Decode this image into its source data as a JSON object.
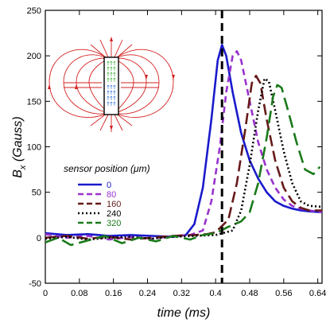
{
  "chart_data": {
    "type": "line",
    "xlabel": "time (ms)",
    "ylabel_main": "B",
    "ylabel_sub": "x",
    "ylabel_units": "(Gauss)",
    "xlim": [
      0,
      0.65
    ],
    "ylim": [
      -50,
      250
    ],
    "xticks": [
      "0",
      "0.08",
      "0.16",
      "0.24",
      "0.32",
      "0.4",
      "0.48",
      "0.56",
      "0.64"
    ],
    "xtick_values": [
      0,
      0.08,
      0.16,
      0.24,
      0.32,
      0.4,
      0.48,
      0.56,
      0.64
    ],
    "yticks": [
      "-50",
      "0",
      "50",
      "100",
      "150",
      "200",
      "250"
    ],
    "ytick_values": [
      -50,
      0,
      50,
      100,
      150,
      200,
      250
    ],
    "vline": {
      "x": 0.415,
      "color": "#000000",
      "style": "dashed"
    },
    "legend": {
      "title": "sensor position (μm)",
      "placement": "left-middle"
    },
    "series": [
      {
        "name": "0",
        "color": "#1a1acc",
        "dash": "solid",
        "points": [
          [
            0,
            5
          ],
          [
            0.05,
            3
          ],
          [
            0.1,
            4
          ],
          [
            0.15,
            2
          ],
          [
            0.2,
            3
          ],
          [
            0.25,
            2
          ],
          [
            0.3,
            1
          ],
          [
            0.33,
            3
          ],
          [
            0.35,
            15
          ],
          [
            0.37,
            55
          ],
          [
            0.39,
            130
          ],
          [
            0.405,
            195
          ],
          [
            0.415,
            212
          ],
          [
            0.425,
            200
          ],
          [
            0.44,
            160
          ],
          [
            0.46,
            115
          ],
          [
            0.48,
            85
          ],
          [
            0.5,
            65
          ],
          [
            0.52,
            50
          ],
          [
            0.54,
            40
          ],
          [
            0.56,
            35
          ],
          [
            0.58,
            32
          ],
          [
            0.6,
            30
          ],
          [
            0.62,
            29
          ],
          [
            0.65,
            28
          ]
        ]
      },
      {
        "name": "80",
        "color": "#9933cc",
        "dash": "8,5",
        "points": [
          [
            0,
            4
          ],
          [
            0.05,
            0
          ],
          [
            0.1,
            2
          ],
          [
            0.15,
            -2
          ],
          [
            0.2,
            1
          ],
          [
            0.25,
            -1
          ],
          [
            0.3,
            2
          ],
          [
            0.34,
            3
          ],
          [
            0.37,
            8
          ],
          [
            0.39,
            40
          ],
          [
            0.41,
            100
          ],
          [
            0.425,
            160
          ],
          [
            0.44,
            200
          ],
          [
            0.45,
            205
          ],
          [
            0.46,
            195
          ],
          [
            0.48,
            150
          ],
          [
            0.5,
            105
          ],
          [
            0.52,
            75
          ],
          [
            0.54,
            55
          ],
          [
            0.56,
            42
          ],
          [
            0.58,
            35
          ],
          [
            0.6,
            32
          ],
          [
            0.62,
            30
          ],
          [
            0.65,
            28
          ]
        ]
      },
      {
        "name": "160",
        "color": "#661a1a",
        "dash": "14,6",
        "points": [
          [
            0,
            0
          ],
          [
            0.05,
            2
          ],
          [
            0.1,
            -1
          ],
          [
            0.15,
            1
          ],
          [
            0.2,
            -2
          ],
          [
            0.25,
            0
          ],
          [
            0.3,
            2
          ],
          [
            0.35,
            3
          ],
          [
            0.38,
            4
          ],
          [
            0.4,
            6
          ],
          [
            0.43,
            20
          ],
          [
            0.45,
            60
          ],
          [
            0.47,
            120
          ],
          [
            0.485,
            170
          ],
          [
            0.495,
            178
          ],
          [
            0.505,
            170
          ],
          [
            0.52,
            130
          ],
          [
            0.54,
            85
          ],
          [
            0.56,
            55
          ],
          [
            0.58,
            40
          ],
          [
            0.6,
            33
          ],
          [
            0.62,
            30
          ],
          [
            0.65,
            30
          ]
        ]
      },
      {
        "name": "240",
        "color": "#000000",
        "dash": "2,3",
        "points": [
          [
            0,
            -1
          ],
          [
            0.05,
            1
          ],
          [
            0.1,
            -2
          ],
          [
            0.15,
            0
          ],
          [
            0.2,
            1
          ],
          [
            0.25,
            -1
          ],
          [
            0.3,
            1
          ],
          [
            0.35,
            2
          ],
          [
            0.4,
            3
          ],
          [
            0.44,
            8
          ],
          [
            0.46,
            30
          ],
          [
            0.48,
            80
          ],
          [
            0.5,
            140
          ],
          [
            0.515,
            175
          ],
          [
            0.525,
            172
          ],
          [
            0.54,
            140
          ],
          [
            0.56,
            95
          ],
          [
            0.58,
            60
          ],
          [
            0.6,
            40
          ],
          [
            0.62,
            35
          ],
          [
            0.65,
            34
          ]
        ]
      },
      {
        "name": "320",
        "color": "#1a7a1a",
        "dash": "16,7",
        "points": [
          [
            0,
            -5
          ],
          [
            0.03,
            0
          ],
          [
            0.06,
            -8
          ],
          [
            0.1,
            -3
          ],
          [
            0.14,
            2
          ],
          [
            0.18,
            -6
          ],
          [
            0.22,
            0
          ],
          [
            0.26,
            -4
          ],
          [
            0.3,
            2
          ],
          [
            0.34,
            -2
          ],
          [
            0.37,
            3
          ],
          [
            0.4,
            5
          ],
          [
            0.43,
            12
          ],
          [
            0.46,
            18
          ],
          [
            0.48,
            28
          ],
          [
            0.5,
            60
          ],
          [
            0.52,
            110
          ],
          [
            0.535,
            155
          ],
          [
            0.545,
            168
          ],
          [
            0.555,
            165
          ],
          [
            0.57,
            140
          ],
          [
            0.59,
            105
          ],
          [
            0.61,
            75
          ],
          [
            0.63,
            70
          ],
          [
            0.645,
            78
          ]
        ]
      }
    ]
  }
}
